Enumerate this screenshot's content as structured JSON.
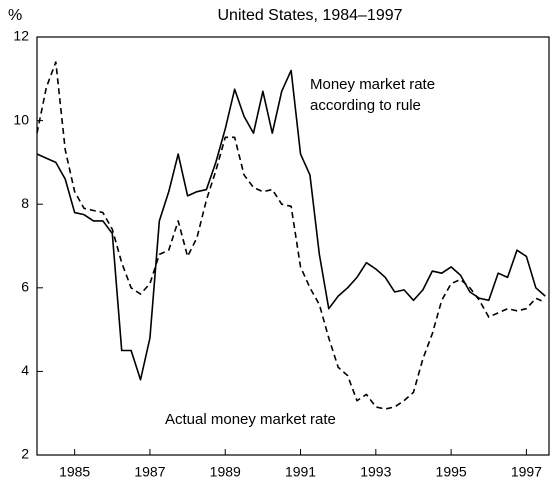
{
  "chart_data": {
    "type": "line",
    "title": "United States, 1984–1997",
    "ylabel": "%",
    "x": [
      1984,
      1984.25,
      1984.5,
      1984.75,
      1985,
      1985.25,
      1985.5,
      1985.75,
      1986,
      1986.25,
      1986.5,
      1986.75,
      1987,
      1987.25,
      1987.5,
      1987.75,
      1988,
      1988.25,
      1988.5,
      1988.75,
      1989,
      1989.25,
      1989.5,
      1989.75,
      1990,
      1990.25,
      1990.5,
      1990.75,
      1991,
      1991.25,
      1991.5,
      1991.75,
      1992,
      1992.25,
      1992.5,
      1992.75,
      1993,
      1993.25,
      1993.5,
      1993.75,
      1994,
      1994.25,
      1994.5,
      1994.75,
      1995,
      1995.25,
      1995.5,
      1995.75,
      1996,
      1996.25,
      1996.5,
      1996.75,
      1997,
      1997.25,
      1997.5
    ],
    "series": [
      {
        "name": "Money market rate according to rule",
        "color": "#000000",
        "style": "solid",
        "values": [
          9.2,
          9.1,
          9.0,
          8.6,
          7.8,
          7.75,
          7.6,
          7.6,
          7.3,
          4.5,
          4.5,
          3.8,
          4.8,
          7.6,
          8.3,
          9.2,
          8.2,
          8.3,
          8.35,
          9.0,
          9.8,
          10.75,
          10.1,
          9.7,
          10.7,
          9.7,
          10.7,
          11.2,
          9.2,
          8.7,
          6.8,
          5.5,
          5.8,
          6.0,
          6.25,
          6.6,
          6.45,
          6.25,
          5.9,
          5.95,
          5.7,
          5.95,
          6.4,
          6.35,
          6.5,
          6.3,
          5.9,
          5.75,
          5.7,
          6.35,
          6.25,
          6.9,
          6.75,
          6.0,
          5.8
        ]
      },
      {
        "name": "Actual money market rate",
        "color": "#000000",
        "style": "dashed",
        "values": [
          9.7,
          10.8,
          11.4,
          9.3,
          8.3,
          7.9,
          7.85,
          7.8,
          7.4,
          6.6,
          6.0,
          5.85,
          6.1,
          6.8,
          6.9,
          7.6,
          6.75,
          7.2,
          8.1,
          8.8,
          9.6,
          9.6,
          8.7,
          8.4,
          8.3,
          8.35,
          8.0,
          7.95,
          6.5,
          6.0,
          5.6,
          4.8,
          4.1,
          3.9,
          3.3,
          3.45,
          3.15,
          3.1,
          3.15,
          3.3,
          3.5,
          4.3,
          4.9,
          5.7,
          6.1,
          6.2,
          6.0,
          5.7,
          5.3,
          5.4,
          5.5,
          5.45,
          5.5,
          5.75,
          5.65
        ]
      }
    ],
    "annotations": [
      "Money market rate",
      "according to rule",
      "Actual money market rate"
    ],
    "xlim": [
      1984,
      1997.6
    ],
    "xticks": [
      1985,
      1987,
      1989,
      1991,
      1993,
      1995,
      1997
    ],
    "ylim": [
      2,
      12
    ],
    "yticks": [
      2,
      4,
      6,
      8,
      10,
      12
    ],
    "grid": false
  }
}
